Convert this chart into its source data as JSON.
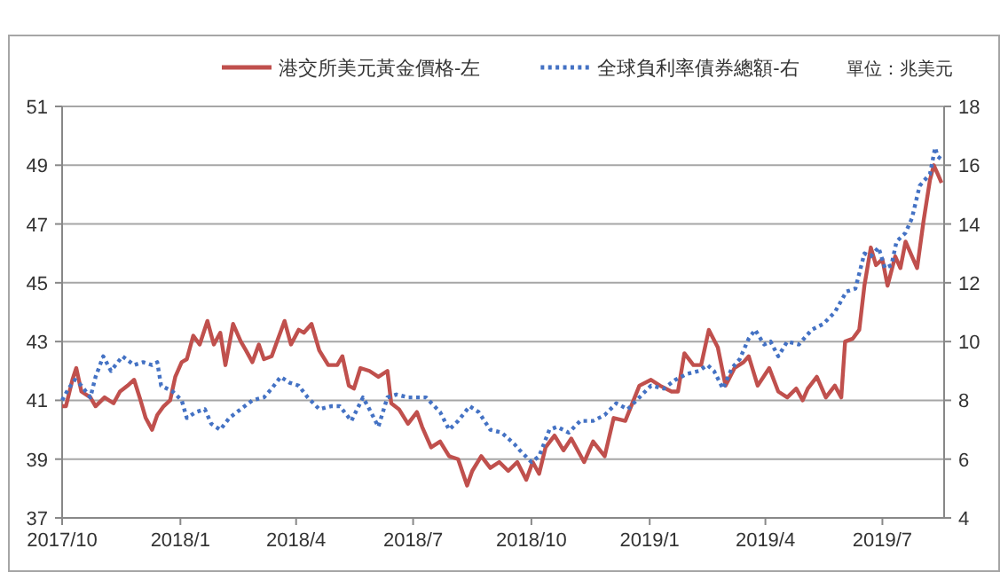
{
  "chart_data": {
    "type": "line",
    "legend": "top",
    "grid": "y",
    "annotations": [
      "單位：兆美元"
    ],
    "xlim": [
      "2017-10-01",
      "2019-08-18"
    ],
    "xticks": [
      {
        "value": "2017-10-01",
        "label": "2017/10"
      },
      {
        "value": "2018-01-01",
        "label": "2018/1"
      },
      {
        "value": "2018-04-01",
        "label": "2018/4"
      },
      {
        "value": "2018-07-01",
        "label": "2018/7"
      },
      {
        "value": "2018-10-01",
        "label": "2018/10"
      },
      {
        "value": "2019-01-01",
        "label": "2019/1"
      },
      {
        "value": "2019-04-01",
        "label": "2019/4"
      },
      {
        "value": "2019-07-01",
        "label": "2019/7"
      }
    ],
    "ylim": [
      37,
      51
    ],
    "yticks": [
      37,
      39,
      41,
      43,
      45,
      47,
      49,
      51
    ],
    "y2lim": [
      4,
      18
    ],
    "y2ticks": [
      4,
      6,
      8,
      10,
      12,
      14,
      16,
      18
    ],
    "series": [
      {
        "name": "港交所美元黃金價格-左",
        "color": "#c0504d",
        "line_style": "solid",
        "axis": "y",
        "x": [
          "2017-10-01",
          "2017-10-04",
          "2017-10-09",
          "2017-10-12",
          "2017-10-16",
          "2017-10-23",
          "2017-10-27",
          "2017-11-03",
          "2017-11-10",
          "2017-11-15",
          "2017-11-21",
          "2017-11-26",
          "2017-12-01",
          "2017-12-05",
          "2017-12-10",
          "2017-12-14",
          "2017-12-19",
          "2017-12-24",
          "2017-12-28",
          "2018-01-02",
          "2018-01-06",
          "2018-01-11",
          "2018-01-16",
          "2018-01-22",
          "2018-01-27",
          "2018-02-01",
          "2018-02-05",
          "2018-02-11",
          "2018-02-17",
          "2018-02-21",
          "2018-02-26",
          "2018-03-03",
          "2018-03-07",
          "2018-03-13",
          "2018-03-18",
          "2018-03-23",
          "2018-03-28",
          "2018-04-03",
          "2018-04-07",
          "2018-04-13",
          "2018-04-19",
          "2018-04-26",
          "2018-05-03",
          "2018-05-07",
          "2018-05-12",
          "2018-05-16",
          "2018-05-21",
          "2018-05-28",
          "2018-06-04",
          "2018-06-11",
          "2018-06-14",
          "2018-06-20",
          "2018-06-27",
          "2018-07-04",
          "2018-07-08",
          "2018-07-15",
          "2018-07-22",
          "2018-07-29",
          "2018-08-05",
          "2018-08-12",
          "2018-08-16",
          "2018-08-23",
          "2018-08-30",
          "2018-09-06",
          "2018-09-13",
          "2018-09-20",
          "2018-09-27",
          "2018-10-02",
          "2018-10-07",
          "2018-10-12",
          "2018-10-19",
          "2018-10-26",
          "2018-11-01",
          "2018-11-11",
          "2018-11-18",
          "2018-11-27",
          "2018-12-04",
          "2018-12-13",
          "2018-12-24",
          "2019-01-02",
          "2019-01-09",
          "2019-01-18",
          "2019-01-23",
          "2019-01-28",
          "2019-02-04",
          "2019-02-10",
          "2019-02-16",
          "2019-02-23",
          "2019-03-01",
          "2019-03-08",
          "2019-03-15",
          "2019-03-19",
          "2019-03-26",
          "2019-04-04",
          "2019-04-11",
          "2019-04-18",
          "2019-04-25",
          "2019-04-30",
          "2019-05-04",
          "2019-05-11",
          "2019-05-18",
          "2019-05-25",
          "2019-05-30",
          "2019-06-02",
          "2019-06-08",
          "2019-06-13",
          "2019-06-17",
          "2019-06-22",
          "2019-06-26",
          "2019-07-01",
          "2019-07-05",
          "2019-07-11",
          "2019-07-15",
          "2019-07-19",
          "2019-07-24",
          "2019-07-28",
          "2019-08-02",
          "2019-08-07",
          "2019-08-10",
          "2019-08-13",
          "2019-08-16"
        ],
        "values": [
          40.8,
          40.8,
          41.7,
          42.1,
          41.3,
          41.1,
          40.8,
          41.1,
          40.9,
          41.3,
          41.5,
          41.7,
          41.0,
          40.4,
          40.0,
          40.5,
          40.8,
          41.0,
          41.8,
          42.3,
          42.4,
          43.2,
          42.9,
          43.7,
          42.9,
          43.3,
          42.2,
          43.6,
          43.0,
          42.7,
          42.3,
          42.9,
          42.4,
          42.5,
          43.1,
          43.7,
          42.9,
          43.4,
          43.3,
          43.6,
          42.7,
          42.2,
          42.2,
          42.5,
          41.5,
          41.4,
          42.1,
          42.0,
          41.8,
          42.0,
          40.9,
          40.7,
          40.2,
          40.6,
          40.1,
          39.4,
          39.6,
          39.1,
          39.0,
          38.1,
          38.6,
          39.1,
          38.7,
          38.9,
          38.6,
          38.9,
          38.3,
          38.9,
          38.5,
          39.4,
          39.8,
          39.3,
          39.7,
          38.9,
          39.6,
          39.1,
          40.4,
          40.3,
          41.5,
          41.7,
          41.5,
          41.3,
          41.3,
          42.6,
          42.2,
          42.2,
          43.4,
          42.8,
          41.5,
          42.1,
          42.3,
          42.5,
          41.5,
          42.1,
          41.3,
          41.1,
          41.4,
          41.0,
          41.4,
          41.8,
          41.1,
          41.5,
          41.1,
          43.0,
          43.1,
          43.4,
          44.9,
          46.2,
          45.6,
          45.8,
          44.9,
          45.9,
          45.5,
          46.4,
          45.9,
          45.5,
          47.1,
          48.5,
          49.0,
          48.7,
          48.4
        ]
      },
      {
        "name": "全球負利率債券總額-右",
        "color": "#4472c4",
        "line_style": "dotted",
        "axis": "y2",
        "x": [
          "2017-10-01",
          "2017-10-06",
          "2017-10-11",
          "2017-10-16",
          "2017-10-23",
          "2017-10-27",
          "2017-11-02",
          "2017-11-08",
          "2017-11-17",
          "2017-11-26",
          "2017-12-03",
          "2017-12-10",
          "2017-12-14",
          "2017-12-17",
          "2017-12-26",
          "2018-01-02",
          "2018-01-06",
          "2018-01-13",
          "2018-01-20",
          "2018-01-25",
          "2018-02-01",
          "2018-02-08",
          "2018-02-17",
          "2018-02-26",
          "2018-03-07",
          "2018-03-13",
          "2018-03-20",
          "2018-03-27",
          "2018-04-03",
          "2018-04-10",
          "2018-04-19",
          "2018-04-28",
          "2018-05-05",
          "2018-05-14",
          "2018-05-23",
          "2018-05-28",
          "2018-06-04",
          "2018-06-11",
          "2018-06-18",
          "2018-06-27",
          "2018-07-11",
          "2018-07-22",
          "2018-07-29",
          "2018-08-05",
          "2018-08-14",
          "2018-08-21",
          "2018-08-30",
          "2018-09-08",
          "2018-09-18",
          "2018-09-22",
          "2018-10-01",
          "2018-10-07",
          "2018-10-15",
          "2018-10-21",
          "2018-10-30",
          "2018-11-08",
          "2018-11-18",
          "2018-11-27",
          "2018-12-06",
          "2018-12-15",
          "2018-12-24",
          "2019-01-02",
          "2019-01-12",
          "2019-01-21",
          "2019-01-30",
          "2019-02-08",
          "2019-02-15",
          "2019-02-20",
          "2019-02-27",
          "2019-03-06",
          "2019-03-12",
          "2019-03-19",
          "2019-03-24",
          "2019-03-31",
          "2019-04-05",
          "2019-04-11",
          "2019-04-18",
          "2019-04-27",
          "2019-05-07",
          "2019-05-16",
          "2019-05-25",
          "2019-06-03",
          "2019-06-10",
          "2019-06-17",
          "2019-06-22",
          "2019-06-28",
          "2019-07-03",
          "2019-07-08",
          "2019-07-12",
          "2019-07-19",
          "2019-07-24",
          "2019-07-30",
          "2019-08-07",
          "2019-08-11",
          "2019-08-13",
          "2019-08-16"
        ],
        "values": [
          8.0,
          8.4,
          8.7,
          8.5,
          8.1,
          8.8,
          9.5,
          9.0,
          9.5,
          9.2,
          9.3,
          9.2,
          9.3,
          8.5,
          8.3,
          8.0,
          7.4,
          7.6,
          7.7,
          7.2,
          7.0,
          7.4,
          7.7,
          8.0,
          8.1,
          8.4,
          8.8,
          8.6,
          8.5,
          8.1,
          7.7,
          7.8,
          7.8,
          7.3,
          8.1,
          7.7,
          7.1,
          8.1,
          8.2,
          8.1,
          8.1,
          7.6,
          7.0,
          7.3,
          7.8,
          7.6,
          7.0,
          6.9,
          6.5,
          6.3,
          5.9,
          6.1,
          7.0,
          7.1,
          6.9,
          7.3,
          7.3,
          7.5,
          7.9,
          7.7,
          8.1,
          8.5,
          8.4,
          8.7,
          8.9,
          9.0,
          9.2,
          9.0,
          8.4,
          9.1,
          9.4,
          10.1,
          10.4,
          9.9,
          10.0,
          9.5,
          10.0,
          9.9,
          10.4,
          10.6,
          11.0,
          11.7,
          11.8,
          13.0,
          12.9,
          13.2,
          12.5,
          12.6,
          13.4,
          13.7,
          14.2,
          15.3,
          15.7,
          16.6,
          16.3,
          16.2
        ]
      }
    ]
  }
}
